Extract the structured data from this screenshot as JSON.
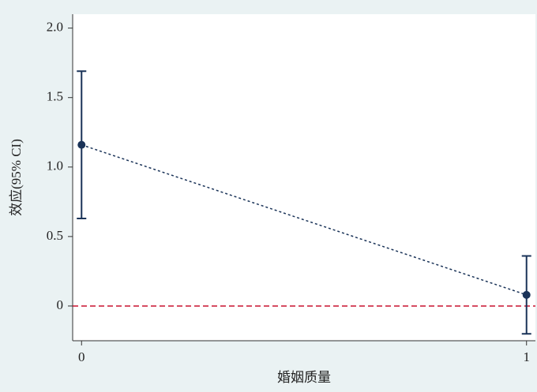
{
  "chart_data": {
    "type": "errorbar",
    "x": [
      0,
      1
    ],
    "series": [
      {
        "color": "#1a3358",
        "values": [
          1.16,
          0.08
        ],
        "lower": [
          0.63,
          -0.2
        ],
        "upper": [
          1.69,
          0.36
        ]
      }
    ],
    "xlabel": "婚姻质量",
    "ylabel": "效应(95% CI)",
    "xlim": [
      -0.02,
      1.02
    ],
    "ylim": [
      -0.25,
      2.1
    ],
    "xticks": [
      0,
      1
    ],
    "yticks": [
      0,
      0.5,
      {
        "value": 1,
        "label": "1.0"
      },
      1.5,
      {
        "value": 2,
        "label": "2.0"
      }
    ],
    "reference_line": {
      "value": 0,
      "color": "#c8102e"
    }
  }
}
